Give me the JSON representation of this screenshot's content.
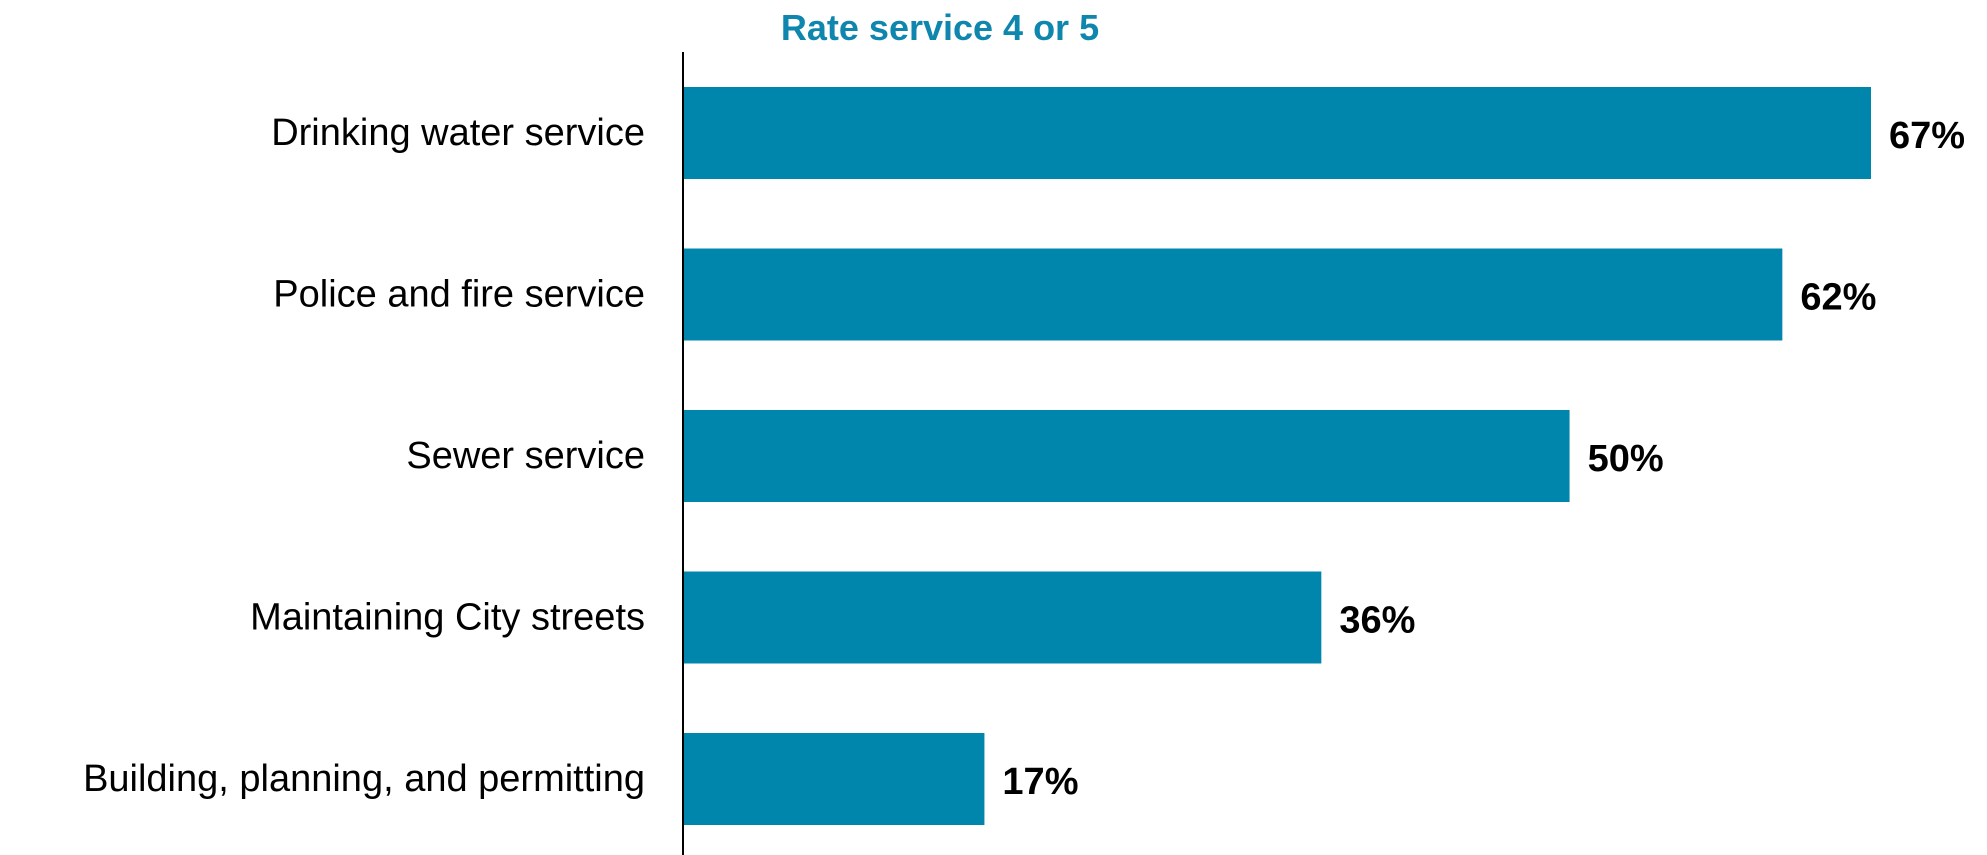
{
  "chart_data": {
    "type": "bar",
    "orientation": "horizontal",
    "title": "Rate service 4 or 5",
    "categories": [
      "Drinking water service",
      "Police and fire service",
      "Sewer service",
      "Maintaining City streets",
      "Building, planning, and permitting"
    ],
    "values": [
      67,
      62,
      50,
      36,
      17
    ],
    "value_labels": [
      "67%",
      "62%",
      "50%",
      "36%",
      "17%"
    ],
    "xlabel": "",
    "ylabel": "",
    "xlim": [
      0,
      67
    ],
    "grid": false,
    "legend": "none"
  },
  "colors": {
    "bar": "#0085AD",
    "title": "#0E86AD",
    "axis": "#000000",
    "text": "#000000"
  }
}
